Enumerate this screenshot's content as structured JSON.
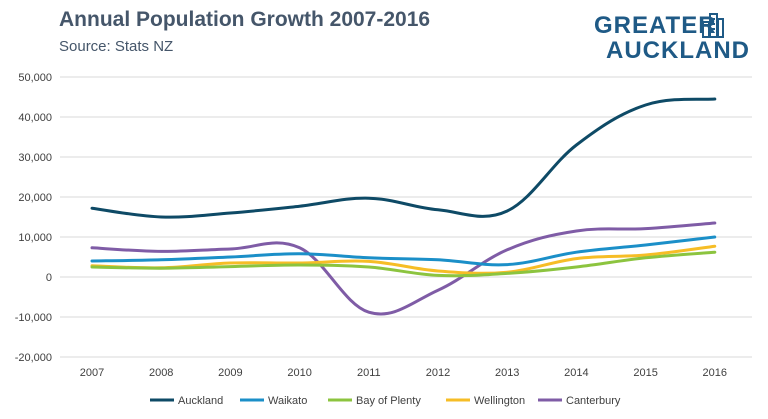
{
  "header": {
    "title": "Annual Population Growth 2007-2016",
    "subtitle": "Source: Stats NZ"
  },
  "logo": {
    "line1": "GREATER",
    "line2": "AUCKLAND",
    "icon": "city-buildings-icon",
    "color": "#1f5a86"
  },
  "chart_data": {
    "type": "line",
    "title": "Annual Population Growth 2007-2016",
    "subtitle": "Source: Stats NZ",
    "xlabel": "",
    "ylabel": "",
    "categories": [
      "2007",
      "2008",
      "2009",
      "2010",
      "2011",
      "2012",
      "2013",
      "2014",
      "2015",
      "2016"
    ],
    "ylim": [
      -20000,
      50000
    ],
    "yticks": [
      -20000,
      -10000,
      0,
      10000,
      20000,
      30000,
      40000,
      50000
    ],
    "ytick_labels": [
      "-20,000",
      "-10,000",
      "0",
      "10,000",
      "20,000",
      "30,000",
      "40,000",
      "50,000"
    ],
    "grid": "horizontal",
    "legend": "bottom",
    "smooth": true,
    "series": [
      {
        "name": "Auckland",
        "color": "#0e4a66",
        "values": [
          17200,
          15000,
          16000,
          17700,
          19700,
          16800,
          16500,
          33000,
          43000,
          44500
        ]
      },
      {
        "name": "Waikato",
        "color": "#1b8fc8",
        "values": [
          4000,
          4300,
          5000,
          5800,
          4800,
          4300,
          3100,
          6200,
          8000,
          10000
        ]
      },
      {
        "name": "Bay of Plenty",
        "color": "#8cc43f",
        "values": [
          2500,
          2200,
          2600,
          3000,
          2500,
          400,
          900,
          2500,
          4800,
          6200
        ]
      },
      {
        "name": "Wellington",
        "color": "#f6bd26",
        "values": [
          2800,
          2300,
          3500,
          3500,
          3900,
          1500,
          1200,
          4600,
          5500,
          7700
        ]
      },
      {
        "name": "Canterbury",
        "color": "#7f5ca6",
        "values": [
          7300,
          6400,
          7000,
          7300,
          -8800,
          -3300,
          6800,
          11500,
          12100,
          13500
        ]
      }
    ]
  }
}
